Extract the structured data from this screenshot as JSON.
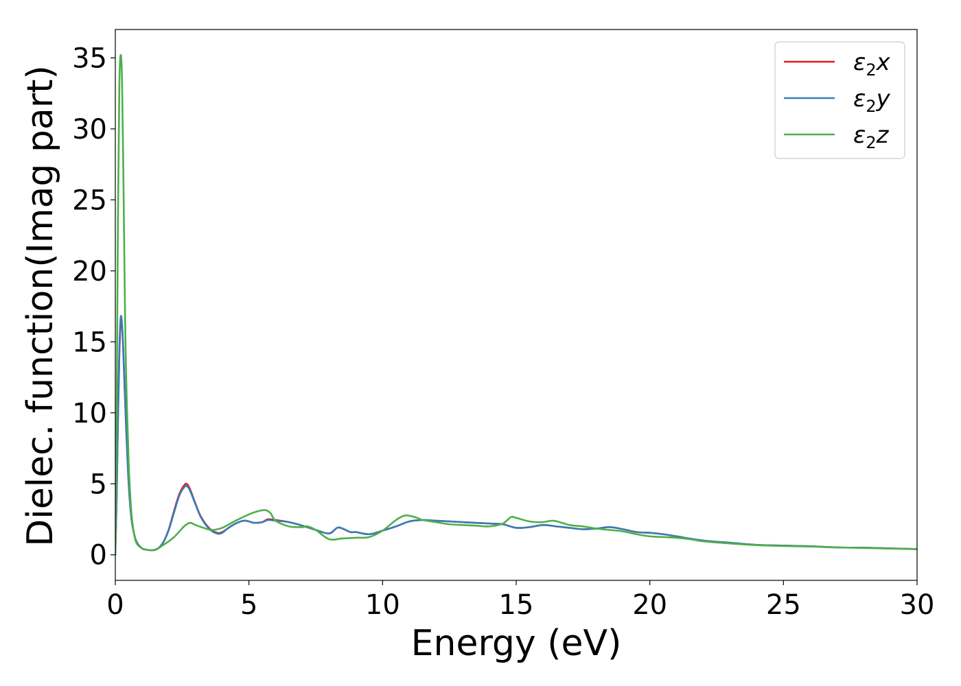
{
  "chart_data": {
    "type": "line",
    "title": "",
    "xlabel": "Energy (eV)",
    "ylabel": "Dielec. function(Imag part)",
    "xlim": [
      0,
      30
    ],
    "ylim": [
      -1.8,
      37
    ],
    "xticks": [
      0,
      5,
      10,
      15,
      20,
      25,
      30
    ],
    "yticks": [
      0,
      5,
      10,
      15,
      20,
      25,
      30,
      35
    ],
    "grid": false,
    "legend_position": "top-right",
    "series": [
      {
        "name": "ε2x",
        "legend_base": "ε",
        "legend_sub": "2",
        "legend_suffix": "x",
        "color": "#e41a1c",
        "x": [
          0,
          0.05,
          0.1,
          0.15,
          0.2,
          0.25,
          0.3,
          0.4,
          0.5,
          0.6,
          0.7,
          0.8,
          1.0,
          1.2,
          1.4,
          1.6,
          1.8,
          2.0,
          2.2,
          2.4,
          2.6,
          2.7,
          2.8,
          3.0,
          3.2,
          3.5,
          3.8,
          4.0,
          4.2,
          4.5,
          4.8,
          5.0,
          5.2,
          5.5,
          5.7,
          6.0,
          6.5,
          7.0,
          7.5,
          8.0,
          8.3,
          8.5,
          8.8,
          9.0,
          9.5,
          10.0,
          10.5,
          11.0,
          11.5,
          12.0,
          12.5,
          13.0,
          13.5,
          14.0,
          14.5,
          15.0,
          15.5,
          16.0,
          16.5,
          17.0,
          17.5,
          18.0,
          18.5,
          19.0,
          19.5,
          20.0,
          20.5,
          21.0,
          22.0,
          23.0,
          24.0,
          25.0,
          26.0,
          27.0,
          28.0,
          29.0,
          30.0
        ],
        "y": [
          0,
          4.0,
          9.5,
          14.0,
          16.3,
          16.1,
          14.2,
          9.2,
          5.0,
          2.6,
          1.5,
          0.9,
          0.45,
          0.35,
          0.32,
          0.45,
          0.9,
          1.8,
          3.1,
          4.3,
          4.95,
          4.95,
          4.6,
          3.6,
          2.7,
          1.9,
          1.55,
          1.6,
          1.85,
          2.2,
          2.4,
          2.35,
          2.25,
          2.3,
          2.5,
          2.45,
          2.3,
          2.05,
          1.75,
          1.5,
          1.9,
          1.85,
          1.6,
          1.6,
          1.45,
          1.7,
          2.0,
          2.35,
          2.45,
          2.4,
          2.35,
          2.3,
          2.25,
          2.2,
          2.15,
          1.9,
          1.95,
          2.1,
          2.0,
          1.9,
          1.8,
          1.85,
          1.95,
          1.8,
          1.6,
          1.55,
          1.45,
          1.3,
          1.0,
          0.85,
          0.7,
          0.65,
          0.6,
          0.52,
          0.5,
          0.45,
          0.4
        ]
      },
      {
        "name": "ε2y",
        "legend_base": "ε",
        "legend_sub": "2",
        "legend_suffix": "y",
        "color": "#377eb8",
        "x": [
          0,
          0.05,
          0.1,
          0.15,
          0.2,
          0.25,
          0.3,
          0.4,
          0.5,
          0.6,
          0.7,
          0.8,
          1.0,
          1.2,
          1.4,
          1.6,
          1.8,
          2.0,
          2.2,
          2.4,
          2.6,
          2.7,
          2.8,
          3.0,
          3.2,
          3.5,
          3.8,
          4.0,
          4.2,
          4.5,
          4.8,
          5.0,
          5.2,
          5.5,
          5.7,
          6.0,
          6.5,
          7.0,
          7.5,
          8.0,
          8.3,
          8.5,
          8.8,
          9.0,
          9.5,
          10.0,
          10.5,
          11.0,
          11.5,
          12.0,
          12.5,
          13.0,
          13.5,
          14.0,
          14.5,
          15.0,
          15.5,
          16.0,
          16.5,
          17.0,
          17.5,
          18.0,
          18.5,
          19.0,
          19.5,
          20.0,
          20.5,
          21.0,
          22.0,
          23.0,
          24.0,
          25.0,
          26.0,
          27.0,
          28.0,
          29.0,
          30.0
        ],
        "y": [
          0,
          4.2,
          9.8,
          14.4,
          16.7,
          16.3,
          14.3,
          9.2,
          5.0,
          2.6,
          1.5,
          0.9,
          0.45,
          0.35,
          0.32,
          0.45,
          0.9,
          1.75,
          3.0,
          4.2,
          4.8,
          4.8,
          4.5,
          3.55,
          2.65,
          1.85,
          1.5,
          1.55,
          1.85,
          2.2,
          2.4,
          2.35,
          2.25,
          2.3,
          2.45,
          2.4,
          2.3,
          2.05,
          1.75,
          1.5,
          1.9,
          1.85,
          1.6,
          1.6,
          1.45,
          1.7,
          2.0,
          2.35,
          2.45,
          2.4,
          2.35,
          2.3,
          2.25,
          2.2,
          2.15,
          1.9,
          1.95,
          2.1,
          2.0,
          1.9,
          1.8,
          1.85,
          1.95,
          1.8,
          1.6,
          1.55,
          1.45,
          1.3,
          1.0,
          0.85,
          0.7,
          0.65,
          0.6,
          0.52,
          0.5,
          0.45,
          0.4
        ]
      },
      {
        "name": "ε2z",
        "legend_base": "ε",
        "legend_sub": "2",
        "legend_suffix": "z",
        "color": "#4daf4a",
        "x": [
          0,
          0.05,
          0.1,
          0.15,
          0.2,
          0.25,
          0.3,
          0.35,
          0.4,
          0.5,
          0.6,
          0.7,
          0.8,
          1.0,
          1.2,
          1.4,
          1.6,
          1.8,
          2.0,
          2.2,
          2.4,
          2.6,
          2.8,
          3.0,
          3.3,
          3.6,
          4.0,
          4.5,
          5.0,
          5.3,
          5.6,
          5.8,
          6.0,
          6.5,
          7.0,
          7.2,
          7.5,
          8.0,
          8.5,
          9.0,
          9.5,
          10.0,
          10.5,
          10.8,
          11.0,
          11.3,
          11.5,
          12.0,
          12.5,
          13.0,
          13.5,
          14.0,
          14.5,
          14.8,
          15.0,
          15.5,
          16.0,
          16.4,
          17.0,
          17.5,
          18.0,
          18.5,
          19.0,
          19.5,
          20.0,
          20.5,
          21.0,
          21.5,
          22.0,
          23.0,
          24.0,
          25.0,
          26.0,
          27.0,
          28.0,
          29.0,
          30.0
        ],
        "y": [
          0,
          10,
          24,
          33,
          35.2,
          33.5,
          27,
          19,
          13,
          6.5,
          3.0,
          1.5,
          0.8,
          0.45,
          0.35,
          0.33,
          0.45,
          0.7,
          0.95,
          1.25,
          1.65,
          2.05,
          2.25,
          2.1,
          1.9,
          1.75,
          1.9,
          2.4,
          2.85,
          3.05,
          3.15,
          2.95,
          2.4,
          2.0,
          1.95,
          2.0,
          1.75,
          1.1,
          1.15,
          1.2,
          1.25,
          1.7,
          2.45,
          2.75,
          2.75,
          2.6,
          2.45,
          2.3,
          2.15,
          2.1,
          2.05,
          2.0,
          2.2,
          2.65,
          2.6,
          2.35,
          2.3,
          2.4,
          2.1,
          2.0,
          1.85,
          1.75,
          1.65,
          1.45,
          1.3,
          1.25,
          1.2,
          1.1,
          0.95,
          0.8,
          0.68,
          0.62,
          0.58,
          0.52,
          0.48,
          0.44,
          0.4
        ]
      }
    ]
  }
}
